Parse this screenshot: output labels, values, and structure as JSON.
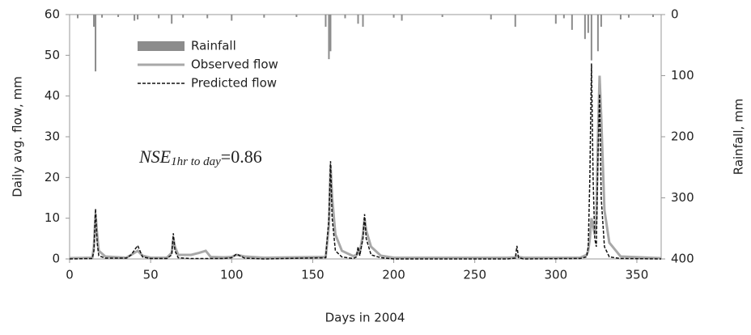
{
  "chart_data": {
    "type": "line",
    "xlabel": "Days in 2004",
    "ylabel": "Daily avg. flow, mm",
    "y2label": "Rainfall, mm",
    "annotation": {
      "name": "NSE",
      "subscript": "1hr to day",
      "value": "=0.86"
    },
    "xlim": [
      0,
      365
    ],
    "xticks": [
      0,
      50,
      100,
      150,
      200,
      250,
      300,
      350
    ],
    "ylim": [
      0,
      60
    ],
    "yticks": [
      0,
      10,
      20,
      30,
      40,
      50,
      60
    ],
    "y2lim": [
      0,
      400
    ],
    "y2ticks": [
      0,
      100,
      200,
      300,
      400
    ],
    "y2_inverted": true,
    "x": [
      0,
      14,
      15,
      16,
      17,
      18,
      22,
      35,
      38,
      42,
      45,
      50,
      60,
      63,
      64,
      65,
      67,
      75,
      80,
      84,
      87,
      95,
      100,
      103,
      108,
      120,
      158,
      160,
      161,
      162,
      164,
      168,
      175,
      177,
      178,
      179,
      181,
      182,
      183,
      186,
      192,
      200,
      270,
      275,
      276,
      277,
      280,
      315,
      319,
      320,
      321,
      322,
      323,
      324,
      325,
      326,
      327,
      328,
      330,
      333,
      340,
      365
    ],
    "series": [
      {
        "name": "Rainfall",
        "type": "bar",
        "axis": "y2",
        "color": "#8c8c8c",
        "x": [
          5,
          15,
          16,
          20,
          30,
          40,
          42,
          55,
          63,
          70,
          85,
          100,
          120,
          140,
          158,
          160,
          161,
          170,
          178,
          181,
          200,
          205,
          230,
          260,
          275,
          300,
          305,
          310,
          318,
          320,
          322,
          326,
          328,
          340,
          345,
          360
        ],
        "values": [
          6,
          20,
          93,
          5,
          4,
          10,
          8,
          6,
          15,
          5,
          6,
          10,
          5,
          4,
          20,
          73,
          60,
          6,
          15,
          20,
          5,
          10,
          4,
          8,
          20,
          15,
          6,
          25,
          40,
          30,
          75,
          60,
          20,
          8,
          5,
          4
        ]
      },
      {
        "name": "Observed flow",
        "type": "line",
        "color": "#a8a8a8",
        "dash": false,
        "values": [
          0.2,
          0.3,
          3,
          11,
          6,
          2,
          0.6,
          0.3,
          1,
          2,
          0.8,
          0.3,
          0.3,
          1.5,
          5,
          3,
          1,
          1,
          1.5,
          2,
          0.5,
          0.4,
          0.5,
          1,
          0.6,
          0.3,
          0.5,
          8,
          23,
          15,
          6,
          2,
          0.7,
          1,
          2,
          1.5,
          6,
          10,
          7,
          3,
          0.8,
          0.3,
          0.3,
          0.4,
          0.8,
          0.5,
          0.3,
          0.3,
          1,
          2,
          5,
          10,
          8,
          6,
          10,
          30,
          45,
          35,
          12,
          4,
          0.6,
          0.2
        ]
      },
      {
        "name": "Predicted flow",
        "type": "line",
        "color": "#111111",
        "dash": true,
        "values": [
          0,
          0.1,
          2,
          12.3,
          4,
          0.8,
          0.2,
          0.2,
          1,
          3.3,
          0.5,
          0.1,
          0.1,
          1,
          6.3,
          2,
          0.3,
          0.1,
          0.1,
          0.1,
          0.1,
          0.1,
          0.3,
          1.2,
          0.2,
          0,
          0.3,
          10,
          24,
          10,
          2,
          0.5,
          0.1,
          0.5,
          3,
          0.8,
          5,
          11,
          5,
          1,
          0.3,
          0,
          0,
          0.2,
          3.2,
          0.3,
          0,
          0.1,
          0.5,
          3,
          20,
          48,
          20,
          5,
          3,
          25,
          40.5,
          15,
          3,
          0.5,
          0.1,
          0
        ]
      }
    ],
    "legend": "upper left"
  }
}
